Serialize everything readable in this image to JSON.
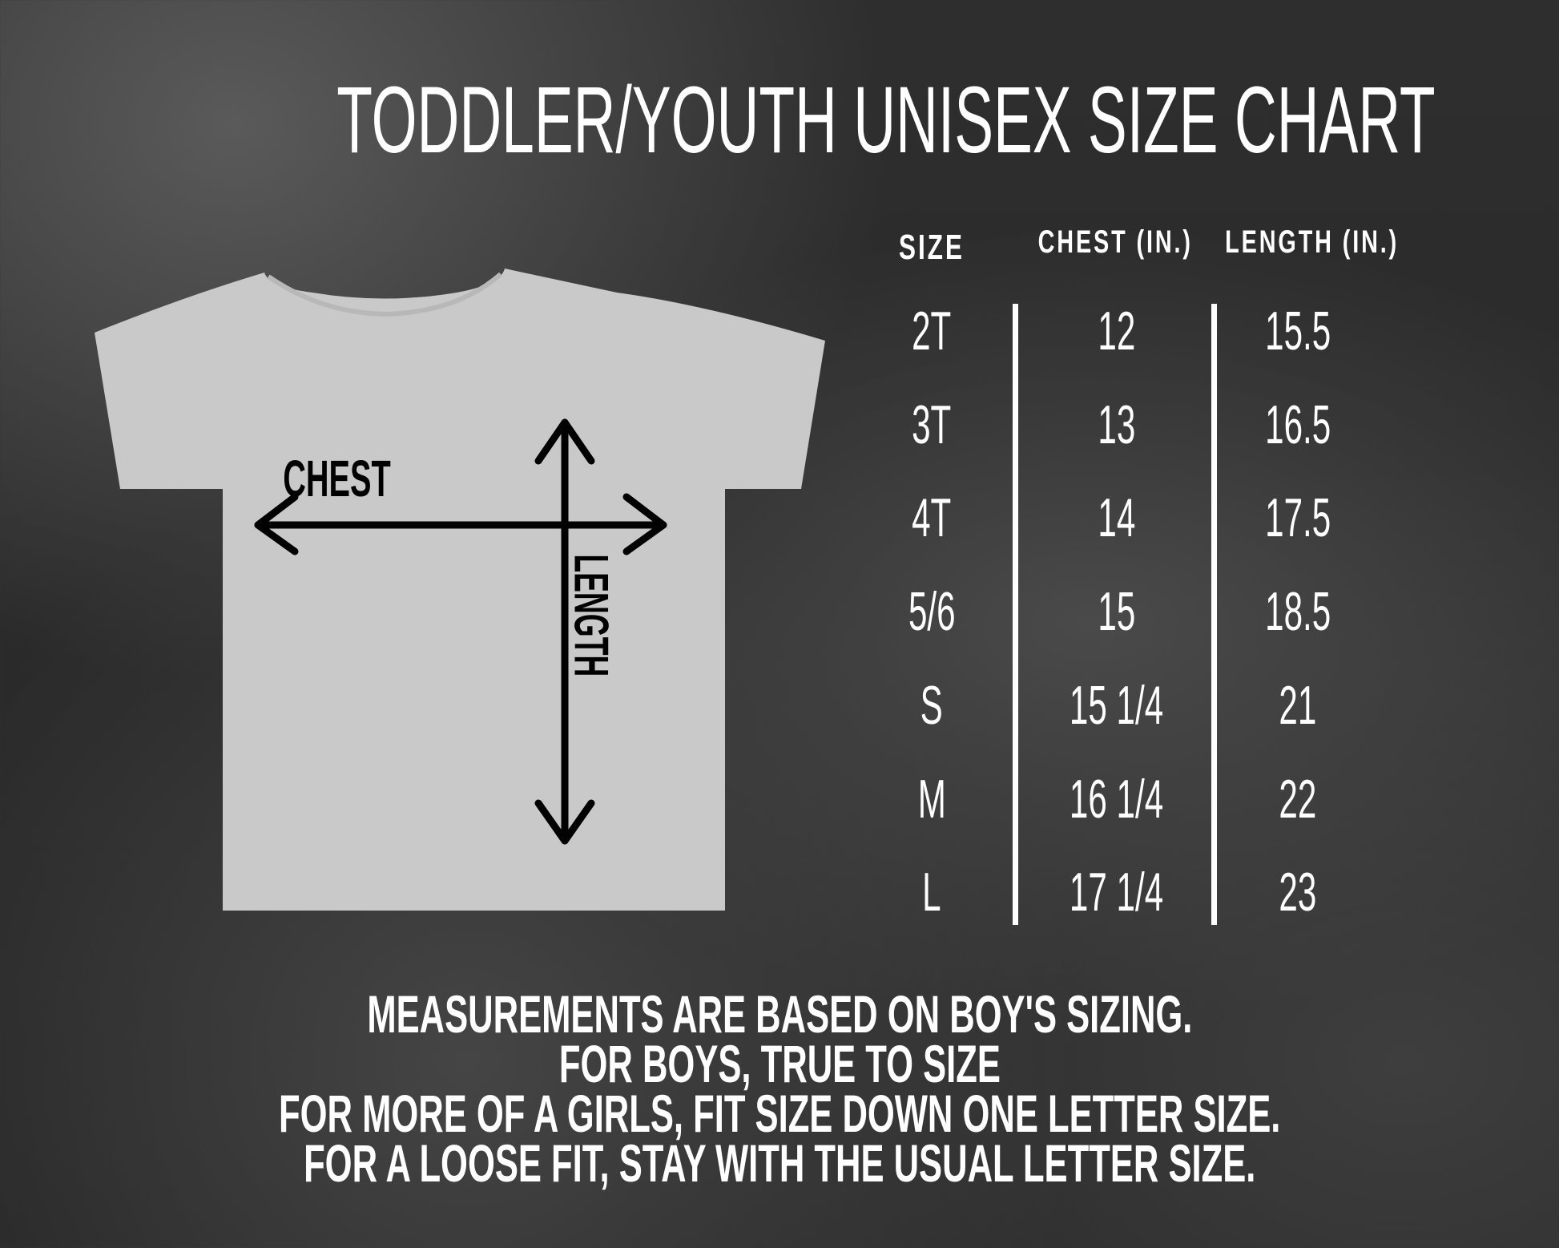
{
  "title": "TODDLER/YOUTH UNISEX SIZE CHART",
  "diagram": {
    "chest_label": "CHEST",
    "length_label": "LENGTH",
    "shirt_color": "#c9c9c9",
    "arrow_color": "#000000"
  },
  "table": {
    "headers": [
      "SIZE",
      "CHEST (IN.)",
      "LENGTH (IN.)"
    ],
    "rows": [
      [
        "2T",
        "12",
        "15.5"
      ],
      [
        "3T",
        "13",
        "16.5"
      ],
      [
        "4T",
        "14",
        "17.5"
      ],
      [
        "5/6",
        "15",
        "18.5"
      ],
      [
        "S",
        "15 1/4",
        "21"
      ],
      [
        "M",
        "16 1/4",
        "22"
      ],
      [
        "L",
        "17 1/4",
        "23"
      ]
    ]
  },
  "notes": [
    "MEASUREMENTS ARE BASED ON BOY'S SIZING.",
    "FOR BOYS, TRUE TO SIZE",
    "FOR MORE OF A GIRLS, FIT SIZE DOWN ONE LETTER SIZE.",
    "FOR A LOOSE FIT, STAY WITH THE USUAL LETTER SIZE."
  ]
}
